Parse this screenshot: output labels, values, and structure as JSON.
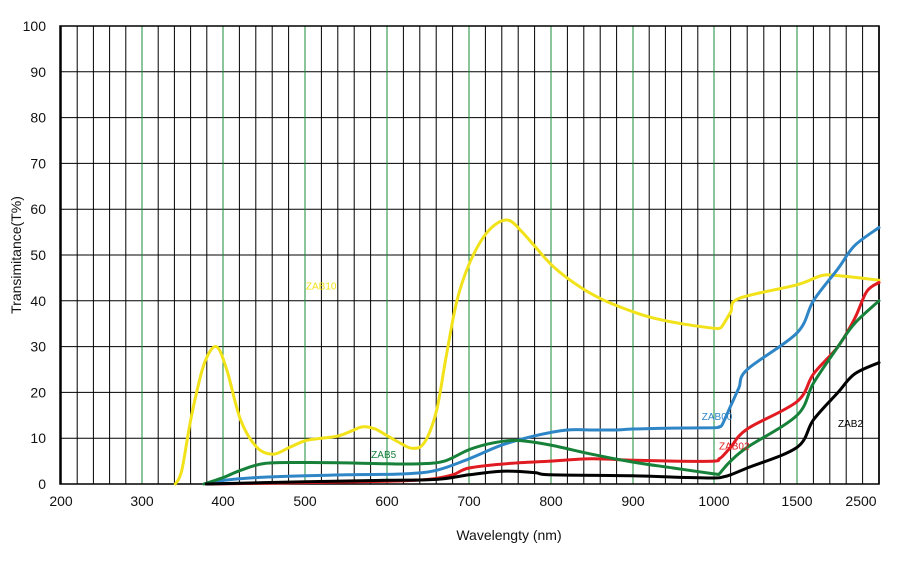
{
  "chart_data": {
    "type": "line",
    "xlabel": "Wavelengty (nm)",
    "ylabel": "Transimitance(T%)",
    "ylim": [
      0,
      100
    ],
    "yticks": [
      "0",
      "10",
      "20",
      "30",
      "40",
      "50",
      "60",
      "70",
      "80",
      "90",
      "100"
    ],
    "xticks": [
      "200",
      "300",
      "400",
      "500",
      "600",
      "700",
      "800",
      "900",
      "1000",
      "1500",
      "2500"
    ],
    "x_scale": "piecewise: 200-1000 linear, then 1500 and 2500 as equally spaced major ticks",
    "grid": true,
    "grid_color": "#000000",
    "major_grid_color": "#1a8a3a",
    "series": [
      {
        "name": "ZAB10",
        "color": "#f2e21a",
        "points": [
          [
            340,
            0
          ],
          [
            348,
            3
          ],
          [
            360,
            15
          ],
          [
            375,
            26
          ],
          [
            390,
            30
          ],
          [
            403,
            25
          ],
          [
            420,
            14
          ],
          [
            440,
            8
          ],
          [
            460,
            6.5
          ],
          [
            480,
            8
          ],
          [
            500,
            9.5
          ],
          [
            520,
            10
          ],
          [
            540,
            10.5
          ],
          [
            555,
            11.5
          ],
          [
            570,
            12.5
          ],
          [
            585,
            12
          ],
          [
            600,
            10.5
          ],
          [
            615,
            9
          ],
          [
            630,
            7.8
          ],
          [
            645,
            9
          ],
          [
            660,
            16
          ],
          [
            672,
            28
          ],
          [
            685,
            40
          ],
          [
            700,
            48
          ],
          [
            718,
            54
          ],
          [
            735,
            57
          ],
          [
            750,
            57.5
          ],
          [
            765,
            55
          ],
          [
            780,
            52
          ],
          [
            800,
            48
          ],
          [
            820,
            45
          ],
          [
            850,
            41.5
          ],
          [
            880,
            39
          ],
          [
            920,
            36.5
          ],
          [
            960,
            35
          ],
          [
            1000,
            34
          ],
          [
            1030,
            34
          ],
          [
            1050,
            34.5
          ],
          [
            1100,
            37.5
          ],
          [
            1150,
            40.5
          ],
          [
            1500,
            43.5
          ],
          [
            1800,
            45.5
          ],
          [
            2000,
            45.5
          ],
          [
            2500,
            44.5
          ]
        ]
      },
      {
        "name": "ZAB00",
        "color": "#2f86c6",
        "points": [
          [
            378,
            0
          ],
          [
            400,
            0.8
          ],
          [
            450,
            1.5
          ],
          [
            550,
            2
          ],
          [
            620,
            2.2
          ],
          [
            660,
            3
          ],
          [
            700,
            5.5
          ],
          [
            740,
            8.5
          ],
          [
            780,
            10.5
          ],
          [
            820,
            11.8
          ],
          [
            850,
            11.8
          ],
          [
            880,
            11.8
          ],
          [
            900,
            12
          ],
          [
            950,
            12.2
          ],
          [
            1000,
            12.3
          ],
          [
            1030,
            12.5
          ],
          [
            1050,
            13
          ],
          [
            1100,
            17
          ],
          [
            1150,
            21
          ],
          [
            1200,
            25
          ],
          [
            1500,
            33
          ],
          [
            1700,
            40
          ],
          [
            2000,
            47
          ],
          [
            2200,
            52
          ],
          [
            2500,
            56
          ]
        ]
      },
      {
        "name": "ZAB02",
        "color": "#e11b22",
        "points": [
          [
            378,
            0
          ],
          [
            500,
            0.3
          ],
          [
            600,
            0.6
          ],
          [
            650,
            1
          ],
          [
            680,
            2
          ],
          [
            700,
            3.5
          ],
          [
            750,
            4.5
          ],
          [
            800,
            5
          ],
          [
            850,
            5.5
          ],
          [
            900,
            5.2
          ],
          [
            950,
            5
          ],
          [
            1000,
            5
          ],
          [
            1030,
            5.5
          ],
          [
            1050,
            6
          ],
          [
            1100,
            8
          ],
          [
            1200,
            12
          ],
          [
            1500,
            18
          ],
          [
            1700,
            24
          ],
          [
            2000,
            30
          ],
          [
            2200,
            36
          ],
          [
            2350,
            42
          ],
          [
            2500,
            44
          ]
        ]
      },
      {
        "name": "ZAB5",
        "color": "#17813a",
        "points": [
          [
            375,
            0
          ],
          [
            400,
            1.5
          ],
          [
            420,
            3
          ],
          [
            450,
            4.5
          ],
          [
            500,
            4.7
          ],
          [
            550,
            4.6
          ],
          [
            600,
            4.4
          ],
          [
            640,
            4.4
          ],
          [
            670,
            5
          ],
          [
            700,
            7.5
          ],
          [
            730,
            9
          ],
          [
            760,
            9.5
          ],
          [
            800,
            8.5
          ],
          [
            850,
            6.5
          ],
          [
            900,
            4.8
          ],
          [
            950,
            3.5
          ],
          [
            1000,
            2.2
          ],
          [
            1030,
            2.2
          ],
          [
            1050,
            3
          ],
          [
            1100,
            5
          ],
          [
            1200,
            8
          ],
          [
            1500,
            15
          ],
          [
            1700,
            22
          ],
          [
            2000,
            30
          ],
          [
            2200,
            35
          ],
          [
            2500,
            40
          ]
        ]
      },
      {
        "name": "ZAB2",
        "color": "#000000",
        "points": [
          [
            378,
            0
          ],
          [
            500,
            0.5
          ],
          [
            600,
            0.8
          ],
          [
            660,
            1
          ],
          [
            700,
            2
          ],
          [
            740,
            2.8
          ],
          [
            780,
            2.5
          ],
          [
            800,
            2
          ],
          [
            900,
            1.8
          ],
          [
            950,
            1.5
          ],
          [
            1000,
            1.3
          ],
          [
            1050,
            1.5
          ],
          [
            1100,
            2
          ],
          [
            1200,
            3.5
          ],
          [
            1500,
            8
          ],
          [
            1700,
            14
          ],
          [
            2000,
            20
          ],
          [
            2200,
            24
          ],
          [
            2500,
            26.5
          ]
        ]
      }
    ],
    "series_labels": [
      {
        "text": "ZAB10",
        "series": "ZAB10",
        "x": 500,
        "y": 42.5
      },
      {
        "text": "ZAB00",
        "series": "ZAB00",
        "x": 985,
        "y": 14
      },
      {
        "text": "ZAB02",
        "series": "ZAB02",
        "x": 1030,
        "y": 7.5
      },
      {
        "text": "ZAB5",
        "series": "ZAB5",
        "x": 580,
        "y": 5.7
      },
      {
        "text": "ZAB2",
        "series": "ZAB2",
        "x": 2000,
        "y": 12.5
      }
    ]
  }
}
